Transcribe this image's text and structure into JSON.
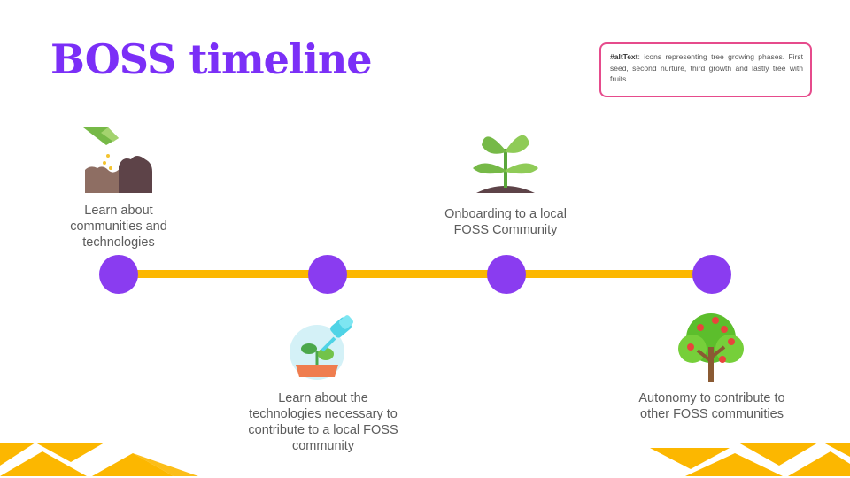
{
  "slide": {
    "title": "BOSS timeline",
    "alt_text": {
      "key": "#altText",
      "body": ": icons representing tree growing phases. First seed, second nurture, third growth and lastly tree with fruits."
    },
    "milestones": [
      {
        "label": "Learn about communities and technologies",
        "icon": "seed-icon"
      },
      {
        "label": "Learn about the technologies necessary to contribute to a local FOSS community",
        "icon": "nurture-icon"
      },
      {
        "label": "Onboarding to a local FOSS Community",
        "icon": "sprout-icon"
      },
      {
        "label": "Autonomy to contribute to other FOSS communities",
        "icon": "fruit-tree-icon"
      }
    ],
    "colors": {
      "title": "#7b2ff7",
      "dot": "#8a3cf0",
      "line": "#fcb700",
      "alt_border": "#e64b8c"
    }
  }
}
